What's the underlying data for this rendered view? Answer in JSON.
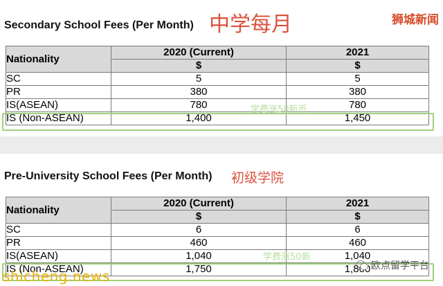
{
  "watermarks": {
    "top_right": "狮城新闻",
    "bottom_left": "shicheng.news",
    "bottom_right": "欧点留学平台"
  },
  "tables": [
    {
      "title": "Secondary School Fees (Per Month)",
      "chinese_label": "中学每月",
      "headers": {
        "nationality": "Nationality",
        "year1": "2020 (Current)",
        "year2": "2021",
        "currency1": "$",
        "currency2": "$"
      },
      "rows": [
        {
          "nationality": "SC",
          "y2020": "5",
          "y2021": "5"
        },
        {
          "nationality": "PR",
          "y2020": "380",
          "y2021": "380"
        },
        {
          "nationality": "IS(ASEAN)",
          "y2020": "780",
          "y2021": "780"
        },
        {
          "nationality": "IS (Non-ASEAN)",
          "y2020": "1,400",
          "y2021": "1,450"
        }
      ],
      "note": "学费涨50新币"
    },
    {
      "title": "Pre-University School Fees (Per Month)",
      "chinese_label": "初级学院",
      "headers": {
        "nationality": "Nationality",
        "year1": "2020 (Current)",
        "year2": "2021",
        "currency1": "$",
        "currency2": "$"
      },
      "rows": [
        {
          "nationality": "SC",
          "y2020": "6",
          "y2021": "6"
        },
        {
          "nationality": "PR",
          "y2020": "460",
          "y2021": "460"
        },
        {
          "nationality": "IS(ASEAN)",
          "y2020": "1,040",
          "y2021": "1,040"
        },
        {
          "nationality": "IS (Non-ASEAN)",
          "y2020": "1,750",
          "y2021": "1,800"
        }
      ],
      "note": "学费涨50新"
    }
  ]
}
